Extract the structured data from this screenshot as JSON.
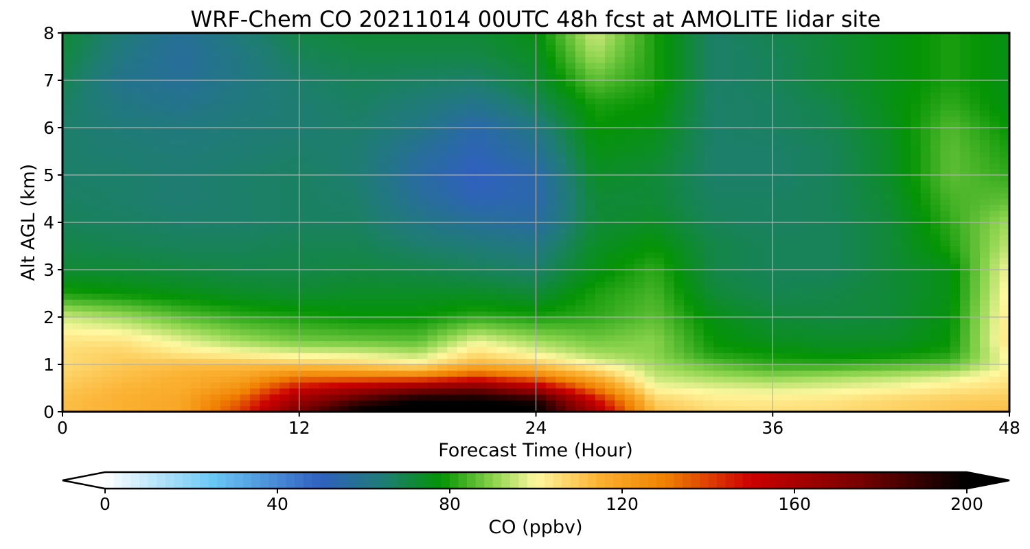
{
  "chart_data": {
    "type": "heatmap",
    "title": "WRF-Chem CO  20211014 00UTC 48h fcst at AMOLITE lidar site",
    "xlabel": "Forecast Time (Hour)",
    "ylabel": "Alt AGL (km)",
    "xlim": [
      0,
      48
    ],
    "ylim": [
      0,
      8
    ],
    "x_ticks": [
      0,
      12,
      24,
      36,
      48
    ],
    "y_ticks": [
      0,
      1,
      2,
      3,
      4,
      5,
      6,
      7,
      8
    ],
    "grid": true,
    "x": [
      0,
      3,
      6,
      9,
      12,
      15,
      18,
      21,
      24,
      27,
      30,
      33,
      36,
      39,
      42,
      45,
      48
    ],
    "y": [
      0,
      0.25,
      0.5,
      0.75,
      1,
      1.25,
      1.5,
      2,
      2.5,
      3,
      3.5,
      4,
      4.5,
      5,
      5.5,
      6,
      6.5,
      7,
      7.5,
      8
    ],
    "z_rows_ppbv": [
      [
        112,
        115,
        118,
        140,
        175,
        200,
        205,
        205,
        200,
        160,
        112,
        106,
        105,
        106,
        108,
        110,
        112
      ],
      [
        112,
        115,
        118,
        135,
        165,
        185,
        200,
        200,
        195,
        150,
        108,
        103,
        103,
        104,
        107,
        109,
        110
      ],
      [
        110,
        114,
        116,
        125,
        150,
        160,
        170,
        175,
        160,
        130,
        100,
        98,
        97,
        98,
        100,
        103,
        106
      ],
      [
        108,
        112,
        115,
        118,
        130,
        130,
        130,
        140,
        130,
        115,
        95,
        92,
        90,
        92,
        94,
        97,
        103
      ],
      [
        106,
        110,
        112,
        112,
        110,
        108,
        103,
        115,
        110,
        100,
        92,
        86,
        82,
        82,
        84,
        86,
        100
      ],
      [
        106,
        108,
        103,
        100,
        97,
        96,
        93,
        105,
        98,
        92,
        90,
        80,
        78,
        76,
        77,
        80,
        102
      ],
      [
        104,
        104,
        98,
        92,
        88,
        87,
        86,
        98,
        92,
        88,
        90,
        78,
        75,
        74,
        74,
        78,
        105
      ],
      [
        96,
        92,
        86,
        82,
        80,
        78,
        78,
        82,
        80,
        82,
        86,
        76,
        72,
        71,
        72,
        77,
        104
      ],
      [
        80,
        78,
        76,
        74,
        73,
        74,
        74,
        74,
        72,
        80,
        84,
        72,
        69,
        70,
        72,
        76,
        102
      ],
      [
        72,
        72,
        71,
        70,
        70,
        71,
        70,
        68,
        66,
        76,
        82,
        70,
        68,
        68,
        72,
        76,
        100
      ],
      [
        70,
        69,
        68,
        68,
        69,
        69,
        66,
        64,
        62,
        74,
        78,
        70,
        68,
        68,
        72,
        80,
        95
      ],
      [
        68,
        67,
        66,
        66,
        67,
        67,
        62,
        58,
        56,
        72,
        74,
        68,
        67,
        68,
        72,
        82,
        92
      ],
      [
        67,
        66,
        65,
        66,
        67,
        66,
        58,
        52,
        54,
        72,
        72,
        67,
        67,
        68,
        73,
        84,
        86
      ],
      [
        66,
        66,
        65,
        66,
        67,
        65,
        56,
        50,
        54,
        74,
        72,
        66,
        66,
        68,
        74,
        86,
        82
      ],
      [
        66,
        65,
        64,
        65,
        66,
        65,
        58,
        52,
        58,
        76,
        74,
        66,
        66,
        68,
        74,
        86,
        80
      ],
      [
        66,
        64,
        63,
        64,
        65,
        66,
        62,
        54,
        62,
        78,
        76,
        66,
        67,
        69,
        75,
        85,
        78
      ],
      [
        67,
        62,
        60,
        63,
        65,
        67,
        64,
        60,
        68,
        80,
        78,
        66,
        67,
        70,
        76,
        82,
        76
      ],
      [
        69,
        60,
        58,
        62,
        66,
        68,
        67,
        66,
        72,
        86,
        80,
        66,
        68,
        72,
        76,
        80,
        76
      ],
      [
        71,
        62,
        57,
        62,
        68,
        70,
        70,
        70,
        74,
        92,
        80,
        66,
        68,
        72,
        76,
        80,
        76
      ],
      [
        72,
        64,
        58,
        64,
        70,
        72,
        72,
        72,
        76,
        96,
        80,
        66,
        69,
        72,
        76,
        80,
        76
      ]
    ],
    "colorbar": {
      "label": "CO  (ppbv)",
      "min": 0,
      "max": 200,
      "ticks": [
        0,
        40,
        80,
        120,
        160,
        200
      ],
      "extend": "both",
      "orientation": "horizontal",
      "stops": [
        {
          "v": 0,
          "c": "#ffffff"
        },
        {
          "v": 25,
          "c": "#6ac8f5"
        },
        {
          "v": 50,
          "c": "#3060c0"
        },
        {
          "v": 65,
          "c": "#1e7d72"
        },
        {
          "v": 78,
          "c": "#049404"
        },
        {
          "v": 90,
          "c": "#8ad34c"
        },
        {
          "v": 100,
          "c": "#fff8a0"
        },
        {
          "v": 115,
          "c": "#fbb030"
        },
        {
          "v": 130,
          "c": "#f08000"
        },
        {
          "v": 150,
          "c": "#cc0000"
        },
        {
          "v": 175,
          "c": "#780000"
        },
        {
          "v": 200,
          "c": "#000000"
        }
      ]
    }
  }
}
